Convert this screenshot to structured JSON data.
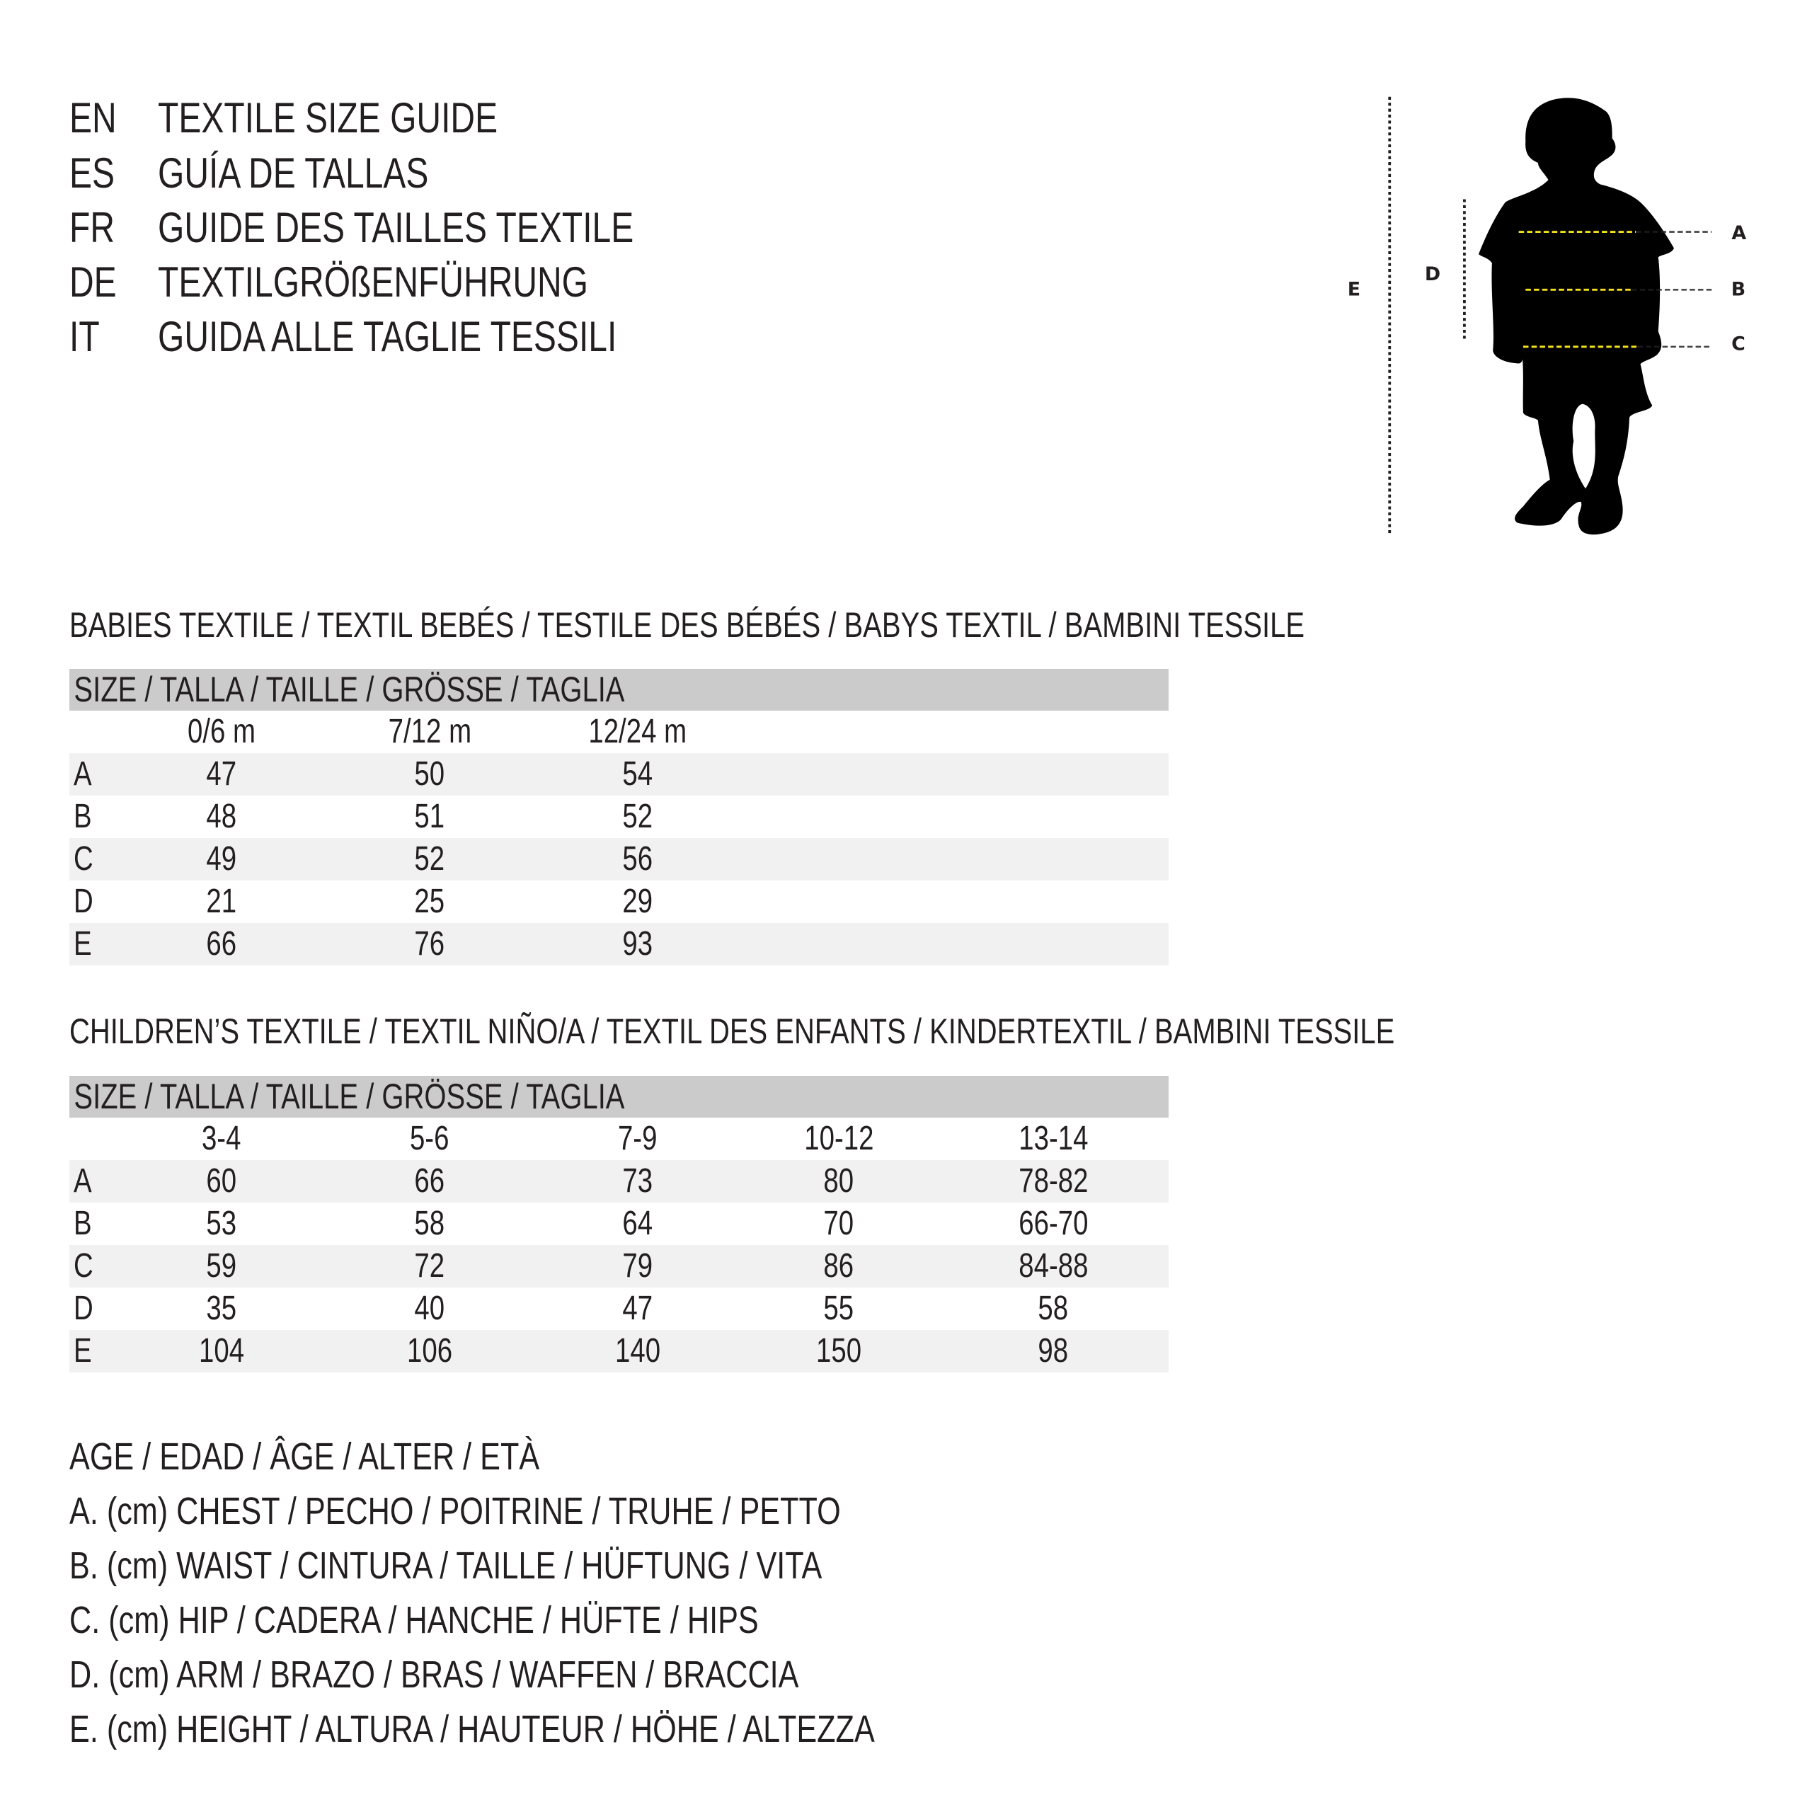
{
  "titles": [
    {
      "lang": "EN",
      "text": "TEXTILE SIZE GUIDE"
    },
    {
      "lang": "ES",
      "text": "GUÍA DE TALLAS"
    },
    {
      "lang": "FR",
      "text": "GUIDE DES TAILLES TEXTILE"
    },
    {
      "lang": "DE",
      "text": "TEXTILGRÖßENFÜHRUNG"
    },
    {
      "lang": "IT",
      "text": "GUIDA ALLE TAGLIE TESSILI"
    }
  ],
  "babies": {
    "heading": "BABIES TEXTILE / TEXTIL BEBÉS / TESTILE DES BÉBÉS / BABYS TEXTIL / BAMBINI TESSILE",
    "size_header": "SIZE / TALLA / TAILLE / GRÖSSE / TAGLIA",
    "columns": [
      "0/6 m",
      "7/12 m",
      "12/24 m"
    ],
    "rows": [
      {
        "label": "A",
        "values": [
          "47",
          "50",
          "54"
        ]
      },
      {
        "label": "B",
        "values": [
          "48",
          "51",
          "52"
        ]
      },
      {
        "label": "C",
        "values": [
          "49",
          "52",
          "56"
        ]
      },
      {
        "label": "D",
        "values": [
          "21",
          "25",
          "29"
        ]
      },
      {
        "label": "E",
        "values": [
          "66",
          "76",
          "93"
        ]
      }
    ]
  },
  "children": {
    "heading": "CHILDREN’S TEXTILE / TEXTIL NIÑO/A / TEXTIL DES ENFANTS / KINDERTEXTIL / BAMBINI TESSILE",
    "size_header": "SIZE / TALLA / TAILLE / GRÖSSE / TAGLIA",
    "columns": [
      "3-4",
      "5-6",
      "7-9",
      "10-12",
      "13-14"
    ],
    "rows": [
      {
        "label": "A",
        "values": [
          "60",
          "66",
          "73",
          "80",
          "78-82"
        ]
      },
      {
        "label": "B",
        "values": [
          "53",
          "58",
          "64",
          "70",
          "66-70"
        ]
      },
      {
        "label": "C",
        "values": [
          "59",
          "72",
          "79",
          "86",
          "84-88"
        ]
      },
      {
        "label": "D",
        "values": [
          "35",
          "40",
          "47",
          "55",
          "58"
        ]
      },
      {
        "label": "E",
        "values": [
          "104",
          "106",
          "140",
          "150",
          "98"
        ]
      }
    ]
  },
  "legend": [
    "AGE / EDAD / ÂGE / ALTER / ETÀ",
    "A. (cm) CHEST / PECHO / POITRINE / TRUHE / PETTO",
    "B. (cm) WAIST / CINTURA / TAILLE / HÜFTUNG / VITA",
    "C. (cm) HIP / CADERA / HANCHE / HÜFTE / HIPS",
    "D. (cm) ARM / BRAZO / BRAS / WAFFEN / BRACCIA",
    "E. (cm) HEIGHT / ALTURA / HAUTEUR / HÖHE / ALTEZZA"
  ],
  "figure": {
    "labels": {
      "A": "A",
      "B": "B",
      "C": "C",
      "D": "D",
      "E": "E"
    },
    "colors": {
      "silhouette": "#000000",
      "measure_line": "#f2e01c",
      "guide_line": "#231f20",
      "header_bg": "#cbcbcc",
      "row_shade": "#f1f1f1"
    }
  }
}
